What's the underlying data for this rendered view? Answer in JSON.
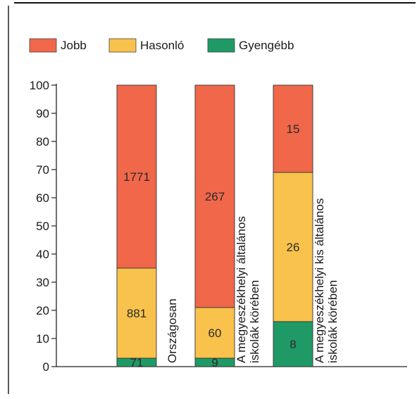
{
  "chart_data": {
    "type": "bar",
    "stacked": true,
    "categories": [
      [
        "Országosan"
      ],
      [
        "A megyeszékhelyi általános",
        "iskolák körében"
      ],
      [
        "A megyeszékhelyi kis általános",
        "iskolák körében"
      ]
    ],
    "series": [
      {
        "name": "Gyengébb",
        "color": "#1f9a66",
        "values": [
          3,
          3,
          16
        ],
        "labels": [
          "71",
          "9",
          "8"
        ]
      },
      {
        "name": "Hasonló",
        "color": "#f8c24c",
        "values": [
          32,
          18,
          53
        ],
        "labels": [
          "881",
          "60",
          "26"
        ]
      },
      {
        "name": "Jobb",
        "color": "#f0674a",
        "values": [
          65,
          79,
          31
        ],
        "labels": [
          "1771",
          "267",
          "15"
        ]
      }
    ],
    "legend_order": [
      "Jobb",
      "Hasonló",
      "Gyengébb"
    ],
    "legend_position": "top",
    "ylim": [
      0,
      100
    ],
    "yticks": [
      0,
      10,
      20,
      30,
      40,
      50,
      60,
      70,
      80,
      90,
      100
    ],
    "xlabel": "",
    "ylabel": "",
    "title": ""
  }
}
